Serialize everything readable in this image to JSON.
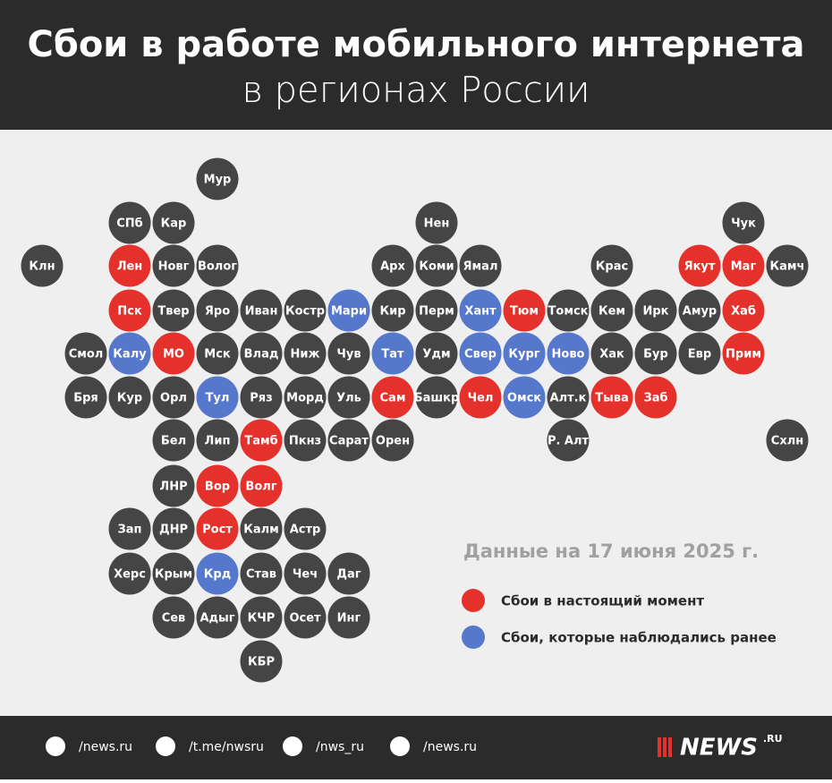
{
  "header": {
    "title": "Сбои в работе мобильного интернета",
    "subtitle": "в регионах России"
  },
  "note": "Данные на 17 июня 2025 г.",
  "legend": [
    {
      "label": "Сбои в настоящий момент",
      "color": "#e4312b"
    },
    {
      "label": "Сбои, которые наблюдались ранее",
      "color": "#5577cc"
    }
  ],
  "neutral_color": "#454545",
  "regions": [
    {
      "label": "Мур",
      "status": null
    },
    {
      "label": "СПб",
      "status": null
    },
    {
      "label": "Кар",
      "status": null
    },
    {
      "label": "Нен",
      "status": null
    },
    {
      "label": "Чук",
      "status": null
    },
    {
      "label": "Клн",
      "status": null
    },
    {
      "label": "Лен",
      "status": 0
    },
    {
      "label": "Новг",
      "status": null
    },
    {
      "label": "Волог",
      "status": null
    },
    {
      "label": "Арх",
      "status": null
    },
    {
      "label": "Коми",
      "status": null
    },
    {
      "label": "Ямал",
      "status": null
    },
    {
      "label": "Крас",
      "status": null
    },
    {
      "label": "Якут",
      "status": 0
    },
    {
      "label": "Маг",
      "status": 0
    },
    {
      "label": "Камч",
      "status": null
    },
    {
      "label": "Пск",
      "status": 0
    },
    {
      "label": "Твер",
      "status": null
    },
    {
      "label": "Яро",
      "status": null
    },
    {
      "label": "Иван",
      "status": null
    },
    {
      "label": "Костр",
      "status": null
    },
    {
      "label": "Мари",
      "status": 1
    },
    {
      "label": "Кир",
      "status": null
    },
    {
      "label": "Перм",
      "status": null
    },
    {
      "label": "Хант",
      "status": 1
    },
    {
      "label": "Тюм",
      "status": 0
    },
    {
      "label": "Томск",
      "status": null
    },
    {
      "label": "Кем",
      "status": null
    },
    {
      "label": "Ирк",
      "status": null
    },
    {
      "label": "Амур",
      "status": null
    },
    {
      "label": "Хаб",
      "status": 0
    },
    {
      "label": "Смол",
      "status": null
    },
    {
      "label": "Калу",
      "status": 1
    },
    {
      "label": "МО",
      "status": 0
    },
    {
      "label": "Мск",
      "status": null
    },
    {
      "label": "Влад",
      "status": null
    },
    {
      "label": "Ниж",
      "status": null
    },
    {
      "label": "Чув",
      "status": null
    },
    {
      "label": "Тат",
      "status": 1
    },
    {
      "label": "Удм",
      "status": null
    },
    {
      "label": "Свер",
      "status": 1
    },
    {
      "label": "Кург",
      "status": 1
    },
    {
      "label": "Ново",
      "status": 1
    },
    {
      "label": "Хак",
      "status": null
    },
    {
      "label": "Бур",
      "status": null
    },
    {
      "label": "Евр",
      "status": null
    },
    {
      "label": "Прим",
      "status": 0
    },
    {
      "label": "Бря",
      "status": null
    },
    {
      "label": "Кур",
      "status": null
    },
    {
      "label": "Орл",
      "status": null
    },
    {
      "label": "Тул",
      "status": 1
    },
    {
      "label": "Ряз",
      "status": null
    },
    {
      "label": "Морд",
      "status": null
    },
    {
      "label": "Уль",
      "status": null
    },
    {
      "label": "Сам",
      "status": 0
    },
    {
      "label": "Башкр",
      "status": null
    },
    {
      "label": "Чел",
      "status": 0
    },
    {
      "label": "Омск",
      "status": 1
    },
    {
      "label": "Алт.к",
      "status": null
    },
    {
      "label": "Тыва",
      "status": 0
    },
    {
      "label": "Заб",
      "status": 0
    },
    {
      "label": "Бел",
      "status": null
    },
    {
      "label": "Лип",
      "status": null
    },
    {
      "label": "Тамб",
      "status": 0
    },
    {
      "label": "Пкнз",
      "status": null
    },
    {
      "label": "Сарат",
      "status": null
    },
    {
      "label": "Орен",
      "status": null
    },
    {
      "label": "Р. Алт",
      "status": null
    },
    {
      "label": "Схлн",
      "status": null
    },
    {
      "label": "ЛНР",
      "status": null
    },
    {
      "label": "Вор",
      "status": 0
    },
    {
      "label": "Волг",
      "status": 0
    },
    {
      "label": "Зап",
      "status": null
    },
    {
      "label": "ДНР",
      "status": null
    },
    {
      "label": "Рост",
      "status": 0
    },
    {
      "label": "Калм",
      "status": null
    },
    {
      "label": "Астр",
      "status": null
    },
    {
      "label": "Херс",
      "status": null
    },
    {
      "label": "Крым",
      "status": null
    },
    {
      "label": "Крд",
      "status": 1
    },
    {
      "label": "Став",
      "status": null
    },
    {
      "label": "Чеч",
      "status": null
    },
    {
      "label": "Даг",
      "status": null
    },
    {
      "label": "Сев",
      "status": null
    },
    {
      "label": "Адыг",
      "status": null
    },
    {
      "label": "КЧР",
      "status": null
    },
    {
      "label": "Осет",
      "status": null
    },
    {
      "label": "Инг",
      "status": null
    },
    {
      "label": "КБР",
      "status": null
    }
  ],
  "footer": {
    "links": [
      "/news.ru",
      "/t.me/nwsru",
      "/nws_ru",
      "/news.ru"
    ],
    "logo": "NEWS",
    "logo_suffix": ".RU"
  }
}
